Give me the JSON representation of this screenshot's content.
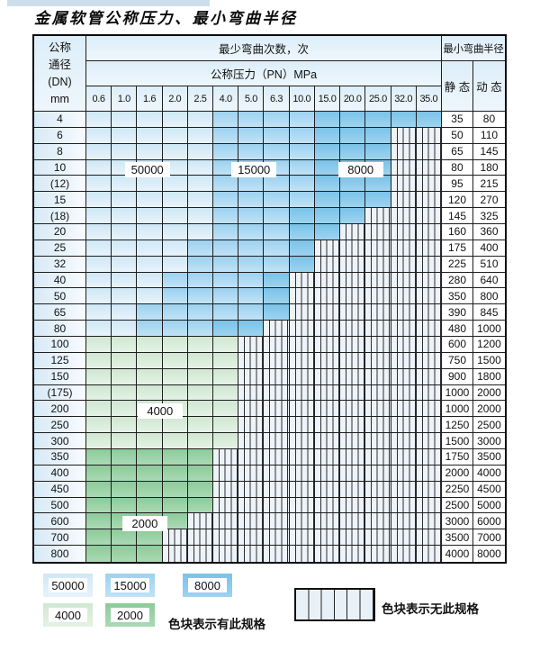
{
  "page": {
    "title": "金属软管公称压力、最小弯曲半径"
  },
  "table": {
    "header": {
      "dn_lines": [
        "公称",
        "通径",
        "(DN)",
        "mm"
      ],
      "cycles": "最少弯曲次数，次",
      "pressure": "公称压力（PN）MPa",
      "radius": "最小弯曲半径",
      "static_label": "静 态",
      "dynamic_label": "动 态"
    },
    "columns": [
      "0.6",
      "1.0",
      "1.6",
      "2.0",
      "2.5",
      "4.0",
      "5.0",
      "6.3",
      "10.0",
      "15.0",
      "20.0",
      "25.0",
      "32.0",
      "35.0"
    ],
    "rows": [
      {
        "dn": "4",
        "static": "35",
        "dynamic": "80",
        "bands": [
          [
            "b50000",
            0,
            4
          ],
          [
            "b15000",
            5,
            8
          ],
          [
            "b8000",
            9,
            13
          ]
        ]
      },
      {
        "dn": "6",
        "static": "50",
        "dynamic": "110",
        "bands": [
          [
            "b50000",
            0,
            4
          ],
          [
            "b15000",
            5,
            8
          ],
          [
            "b8000",
            9,
            11
          ]
        ]
      },
      {
        "dn": "8",
        "static": "65",
        "dynamic": "145",
        "bands": [
          [
            "b50000",
            0,
            4
          ],
          [
            "b15000",
            5,
            8
          ],
          [
            "b8000",
            9,
            11
          ]
        ]
      },
      {
        "dn": "10",
        "static": "80",
        "dynamic": "180",
        "bands": [
          [
            "b50000",
            0,
            4
          ],
          [
            "b15000",
            5,
            8
          ],
          [
            "b8000",
            9,
            11
          ]
        ]
      },
      {
        "dn": "(12)",
        "static": "95",
        "dynamic": "215",
        "bands": [
          [
            "b50000",
            0,
            4
          ],
          [
            "b15000",
            5,
            8
          ],
          [
            "b8000",
            9,
            11
          ]
        ]
      },
      {
        "dn": "15",
        "static": "120",
        "dynamic": "270",
        "bands": [
          [
            "b50000",
            0,
            4
          ],
          [
            "b15000",
            5,
            8
          ],
          [
            "b8000",
            9,
            11
          ]
        ]
      },
      {
        "dn": "(18)",
        "static": "145",
        "dynamic": "325",
        "bands": [
          [
            "b50000",
            0,
            4
          ],
          [
            "b15000",
            5,
            7
          ],
          [
            "b8000",
            8,
            10
          ]
        ]
      },
      {
        "dn": "20",
        "static": "160",
        "dynamic": "360",
        "bands": [
          [
            "b50000",
            0,
            4
          ],
          [
            "b15000",
            5,
            7
          ],
          [
            "b8000",
            8,
            9
          ]
        ]
      },
      {
        "dn": "25",
        "static": "175",
        "dynamic": "400",
        "bands": [
          [
            "b50000",
            0,
            3
          ],
          [
            "b15000",
            4,
            7
          ],
          [
            "b8000",
            8,
            8
          ]
        ]
      },
      {
        "dn": "32",
        "static": "225",
        "dynamic": "510",
        "bands": [
          [
            "b50000",
            0,
            3
          ],
          [
            "b15000",
            4,
            7
          ],
          [
            "b8000",
            8,
            8
          ]
        ]
      },
      {
        "dn": "40",
        "static": "280",
        "dynamic": "640",
        "bands": [
          [
            "b50000",
            0,
            2
          ],
          [
            "b15000",
            3,
            6
          ],
          [
            "b8000",
            7,
            7
          ]
        ]
      },
      {
        "dn": "50",
        "static": "350",
        "dynamic": "800",
        "bands": [
          [
            "b50000",
            0,
            2
          ],
          [
            "b15000",
            3,
            6
          ],
          [
            "b8000",
            7,
            7
          ]
        ]
      },
      {
        "dn": "65",
        "static": "390",
        "dynamic": "845",
        "bands": [
          [
            "b50000",
            0,
            1
          ],
          [
            "b15000",
            2,
            6
          ],
          [
            "b8000",
            7,
            7
          ]
        ]
      },
      {
        "dn": "80",
        "static": "480",
        "dynamic": "1000",
        "bands": [
          [
            "b50000",
            0,
            1
          ],
          [
            "b15000",
            2,
            4
          ],
          [
            "b8000",
            5,
            6
          ]
        ]
      },
      {
        "dn": "100",
        "static": "600",
        "dynamic": "1200",
        "bands": [
          [
            "g4000",
            0,
            5
          ]
        ]
      },
      {
        "dn": "125",
        "static": "750",
        "dynamic": "1500",
        "bands": [
          [
            "g4000",
            0,
            5
          ]
        ]
      },
      {
        "dn": "150",
        "static": "900",
        "dynamic": "1800",
        "bands": [
          [
            "g4000",
            0,
            5
          ]
        ]
      },
      {
        "dn": "(175)",
        "static": "1000",
        "dynamic": "2000",
        "bands": [
          [
            "g4000",
            0,
            5
          ]
        ]
      },
      {
        "dn": "200",
        "static": "1000",
        "dynamic": "2000",
        "bands": [
          [
            "g4000",
            0,
            5
          ]
        ]
      },
      {
        "dn": "250",
        "static": "1250",
        "dynamic": "2500",
        "bands": [
          [
            "g4000",
            0,
            5
          ]
        ]
      },
      {
        "dn": "300",
        "static": "1500",
        "dynamic": "3000",
        "bands": [
          [
            "g4000",
            0,
            5
          ]
        ]
      },
      {
        "dn": "350",
        "static": "1750",
        "dynamic": "3500",
        "bands": [
          [
            "g2000",
            0,
            4
          ]
        ]
      },
      {
        "dn": "400",
        "static": "2000",
        "dynamic": "4000",
        "bands": [
          [
            "g2000",
            0,
            4
          ]
        ]
      },
      {
        "dn": "450",
        "static": "2250",
        "dynamic": "4500",
        "bands": [
          [
            "g2000",
            0,
            4
          ]
        ]
      },
      {
        "dn": "500",
        "static": "2500",
        "dynamic": "5000",
        "bands": [
          [
            "g2000",
            0,
            4
          ]
        ]
      },
      {
        "dn": "600",
        "static": "3000",
        "dynamic": "6000",
        "bands": [
          [
            "g2000",
            0,
            3
          ]
        ]
      },
      {
        "dn": "700",
        "static": "3500",
        "dynamic": "7000",
        "bands": [
          [
            "g2000",
            0,
            2
          ]
        ]
      },
      {
        "dn": "800",
        "static": "4000",
        "dynamic": "8000",
        "bands": [
          [
            "g2000",
            0,
            2
          ]
        ]
      }
    ],
    "grid_labels": [
      {
        "text": "50000",
        "row": 3,
        "col": 2.4
      },
      {
        "text": "15000",
        "row": 3,
        "col": 6.6
      },
      {
        "text": "8000",
        "row": 3,
        "col": 10.8
      },
      {
        "text": "4000",
        "row": 18,
        "col": 2.9
      },
      {
        "text": "2000",
        "row": 25,
        "col": 2.3
      }
    ]
  },
  "legend": {
    "items": [
      {
        "label": "50000",
        "shade": "b50000"
      },
      {
        "label": "15000",
        "shade": "b15000"
      },
      {
        "label": "8000",
        "shade": "b8000"
      },
      {
        "label": "4000",
        "shade": "g4000"
      },
      {
        "label": "2000",
        "shade": "g2000"
      }
    ],
    "has_spec_text": "色块表示有此规格",
    "no_spec_text": "色块表示无此规格"
  },
  "colors": {
    "cycles_50000": "#cfe7f6",
    "cycles_15000": "#9dd1ef",
    "cycles_8000": "#7bc2e8",
    "cycles_4000": "#cfe7d1",
    "cycles_2000": "#8ccb99",
    "no_spec_bg": "#edf3f9",
    "grid_line": "#1e1e1e"
  }
}
